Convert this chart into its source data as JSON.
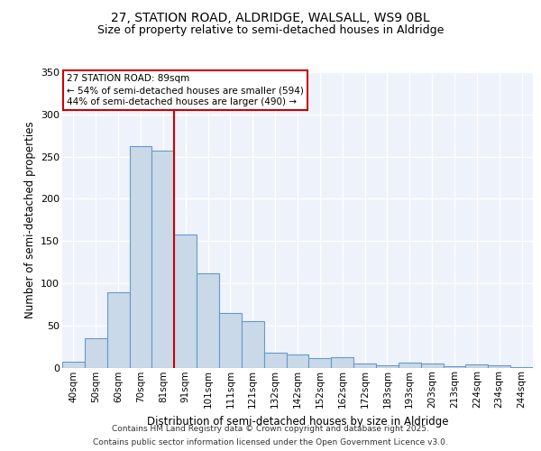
{
  "title_line1": "27, STATION ROAD, ALDRIDGE, WALSALL, WS9 0BL",
  "title_line2": "Size of property relative to semi-detached houses in Aldridge",
  "xlabel": "Distribution of semi-detached houses by size in Aldridge",
  "ylabel": "Number of semi-detached properties",
  "categories": [
    "40sqm",
    "50sqm",
    "60sqm",
    "70sqm",
    "81sqm",
    "91sqm",
    "101sqm",
    "111sqm",
    "121sqm",
    "132sqm",
    "142sqm",
    "152sqm",
    "162sqm",
    "172sqm",
    "183sqm",
    "193sqm",
    "203sqm",
    "213sqm",
    "224sqm",
    "234sqm",
    "244sqm"
  ],
  "values": [
    7,
    35,
    89,
    262,
    257,
    158,
    112,
    65,
    55,
    18,
    15,
    11,
    12,
    5,
    3,
    6,
    5,
    2,
    4,
    3,
    1
  ],
  "bar_color": "#c9d9e8",
  "bar_edge_color": "#6699cc",
  "red_line_x": 4.5,
  "annotation_line1": "27 STATION ROAD: 89sqm",
  "annotation_line2": "← 54% of semi-detached houses are smaller (594)",
  "annotation_line3": "44% of semi-detached houses are larger (490) →",
  "annotation_box_color": "#ffffff",
  "annotation_box_edge": "#cc0000",
  "footer_line1": "Contains HM Land Registry data © Crown copyright and database right 2025.",
  "footer_line2": "Contains public sector information licensed under the Open Government Licence v3.0.",
  "ylim": [
    0,
    350
  ],
  "yticks": [
    0,
    50,
    100,
    150,
    200,
    250,
    300,
    350
  ],
  "background_color": "#eef2fa",
  "grid_color": "#ffffff",
  "fig_bg_color": "#ffffff"
}
